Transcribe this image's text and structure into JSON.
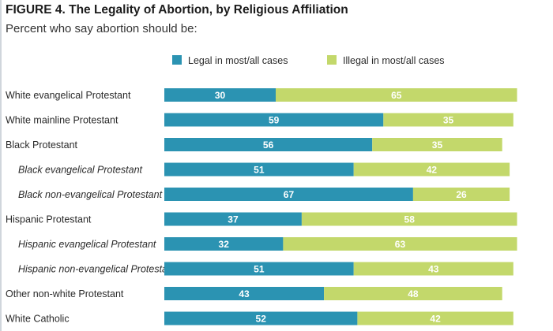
{
  "header": {
    "title": "FIGURE 4.  The Legality of Abortion, by Religious Affiliation",
    "subtitle": "Percent who say abortion should be:"
  },
  "chart_data": {
    "type": "bar",
    "orientation": "horizontal",
    "stacked": true,
    "categories": [
      "White evangelical Protestant",
      "White mainline Protestant",
      "Black Protestant",
      "Black evangelical Protestant",
      "Black non-evangelical Protestant",
      "Hispanic Protestant",
      "Hispanic evangelical Protestant",
      "Hispanic non-evangelical Protestant",
      "Other non-white Protestant",
      "White Catholic"
    ],
    "subgroup": [
      false,
      false,
      false,
      true,
      true,
      false,
      true,
      true,
      false,
      false
    ],
    "series": [
      {
        "name": "Legal in most/all cases",
        "color": "#2b93b2",
        "values": [
          30,
          59,
          56,
          51,
          67,
          37,
          32,
          51,
          43,
          52
        ]
      },
      {
        "name": "Illegal in most/all cases",
        "color": "#c3d86b",
        "values": [
          65,
          35,
          35,
          42,
          26,
          58,
          63,
          43,
          48,
          42
        ]
      }
    ],
    "legend_position": "top",
    "xlim": [
      0,
      100
    ],
    "grid": false
  }
}
